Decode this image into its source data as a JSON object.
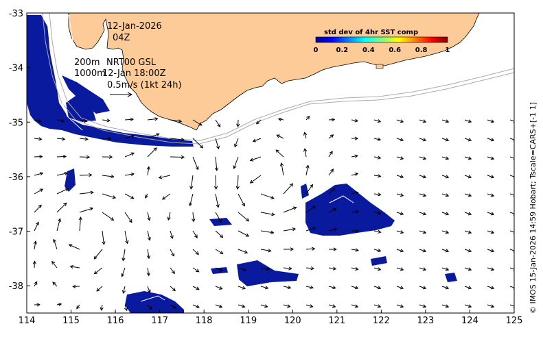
{
  "map": {
    "date": "12-Jan-2026",
    "hour": "04Z",
    "depth_line_1": "200m",
    "depth_line_2": "1000m",
    "product": "NRT00 GSL",
    "time": "12-Jan 18:00Z",
    "scale_label": "0.5m/s (1kt 24h)",
    "side_text": "© IMOS 15-Jan-2026 14:59 Hobart; Tscale=CARS+[-1 1]",
    "colorbar": {
      "title": "std dev of 4hr SST comp",
      "ticks": [
        "0",
        "0.2",
        "0.4",
        "0.6",
        "0.8",
        "1"
      ],
      "min": 0,
      "max": 1
    },
    "x_ticks": [
      "114",
      "115",
      "116",
      "117",
      "118",
      "119",
      "120",
      "121",
      "122",
      "123",
      "124",
      "125"
    ],
    "y_ticks": [
      "-33",
      "-34",
      "-35",
      "-36",
      "-37",
      "-38"
    ],
    "lon_range": [
      114,
      125
    ],
    "lat_range": [
      -38.5,
      -33
    ],
    "colors": {
      "land": "#fdcb98",
      "sst_low": "#00008f",
      "ocean": "#ffffff"
    }
  },
  "chart_data": {
    "type": "heatmap",
    "x_range": [
      114,
      125
    ],
    "y_range": [
      -38.5,
      -33
    ],
    "x_ticks": [
      114,
      115,
      116,
      117,
      118,
      119,
      120,
      121,
      122,
      123,
      124,
      125
    ],
    "y_ticks": [
      -33,
      -34,
      -35,
      -36,
      -37,
      -38
    ],
    "colorbar_range": [
      0,
      1
    ]
  }
}
